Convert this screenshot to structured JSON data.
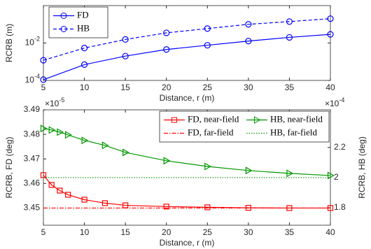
{
  "chart_data": [
    {
      "type": "line",
      "yscale": "log",
      "xlabel": "Distance, r (m)",
      "ylabel": "RCRB (m)",
      "x": [
        5,
        10,
        15,
        20,
        25,
        30,
        35,
        40
      ],
      "xlim": [
        5,
        40
      ],
      "xticks": [
        5,
        10,
        15,
        20,
        25,
        30,
        35,
        40
      ],
      "ylim": [
        0.0001,
        1
      ],
      "yticks": [
        {
          "value": 0.0001,
          "label": "10^-4"
        },
        {
          "value": 0.01,
          "label": "10^-2"
        }
      ],
      "legend": "upper left",
      "series": [
        {
          "name": "FD",
          "color": "#0000ff",
          "linestyle": "solid",
          "marker": "circle",
          "values": [
            0.00011,
            0.0007,
            0.002,
            0.0045,
            0.0076,
            0.0127,
            0.02,
            0.029
          ]
        },
        {
          "name": "HB",
          "color": "#0000ff",
          "linestyle": "dashed",
          "marker": "circle",
          "values": [
            0.0012,
            0.0054,
            0.0155,
            0.035,
            0.059,
            0.1,
            0.14,
            0.2
          ]
        }
      ]
    },
    {
      "type": "line",
      "xlabel": "Distance, r (m)",
      "ylabel": "RCRB, FD (deg)",
      "y2label": "RCRB, HB (deg)",
      "xlim": [
        5,
        40
      ],
      "xticks": [
        5,
        10,
        15,
        20,
        25,
        30,
        35,
        40
      ],
      "ylim": [
        3.443,
        3.49
      ],
      "yticks": [
        3.45,
        3.46,
        3.47,
        3.48,
        3.49
      ],
      "y_exponent": "×10^-5",
      "y2lim": [
        1.684,
        2.45
      ],
      "y2ticks": [
        1.8,
        2,
        2.2
      ],
      "y2_exponent": "×10^-4",
      "legend": "upper right",
      "legend_columns": 2,
      "series": [
        {
          "name": "FD, near-field",
          "color": "#ff0000",
          "linestyle": "solid",
          "marker": "square",
          "x": [
            5,
            6,
            7,
            8,
            10,
            12.5,
            15,
            20,
            25,
            30,
            35,
            40
          ],
          "values": [
            3.4634,
            3.4594,
            3.4571,
            3.4554,
            3.4534,
            3.452,
            3.4511,
            3.4506,
            3.4503,
            3.4501,
            3.45,
            3.45
          ]
        },
        {
          "name": "HB, near-field",
          "color": "#009900",
          "linestyle": "solid",
          "marker": "triangle",
          "axis": "y2",
          "x": [
            5,
            6,
            7,
            8,
            10,
            12.5,
            15,
            20,
            25,
            30,
            35,
            40
          ],
          "values": [
            2.326,
            2.316,
            2.302,
            2.284,
            2.247,
            2.214,
            2.167,
            2.112,
            2.074,
            2.047,
            2.028,
            2.014
          ]
        },
        {
          "name": "FD, far-field",
          "color": "#ff0000",
          "linestyle": "dashdot",
          "marker": "none",
          "x": [
            5,
            40
          ],
          "values": [
            3.45,
            3.45
          ]
        },
        {
          "name": "HB, far-field",
          "color": "#009900",
          "linestyle": "dotted",
          "marker": "none",
          "axis": "y2",
          "x": [
            5,
            40
          ],
          "values": [
            2,
            2
          ]
        }
      ]
    }
  ]
}
